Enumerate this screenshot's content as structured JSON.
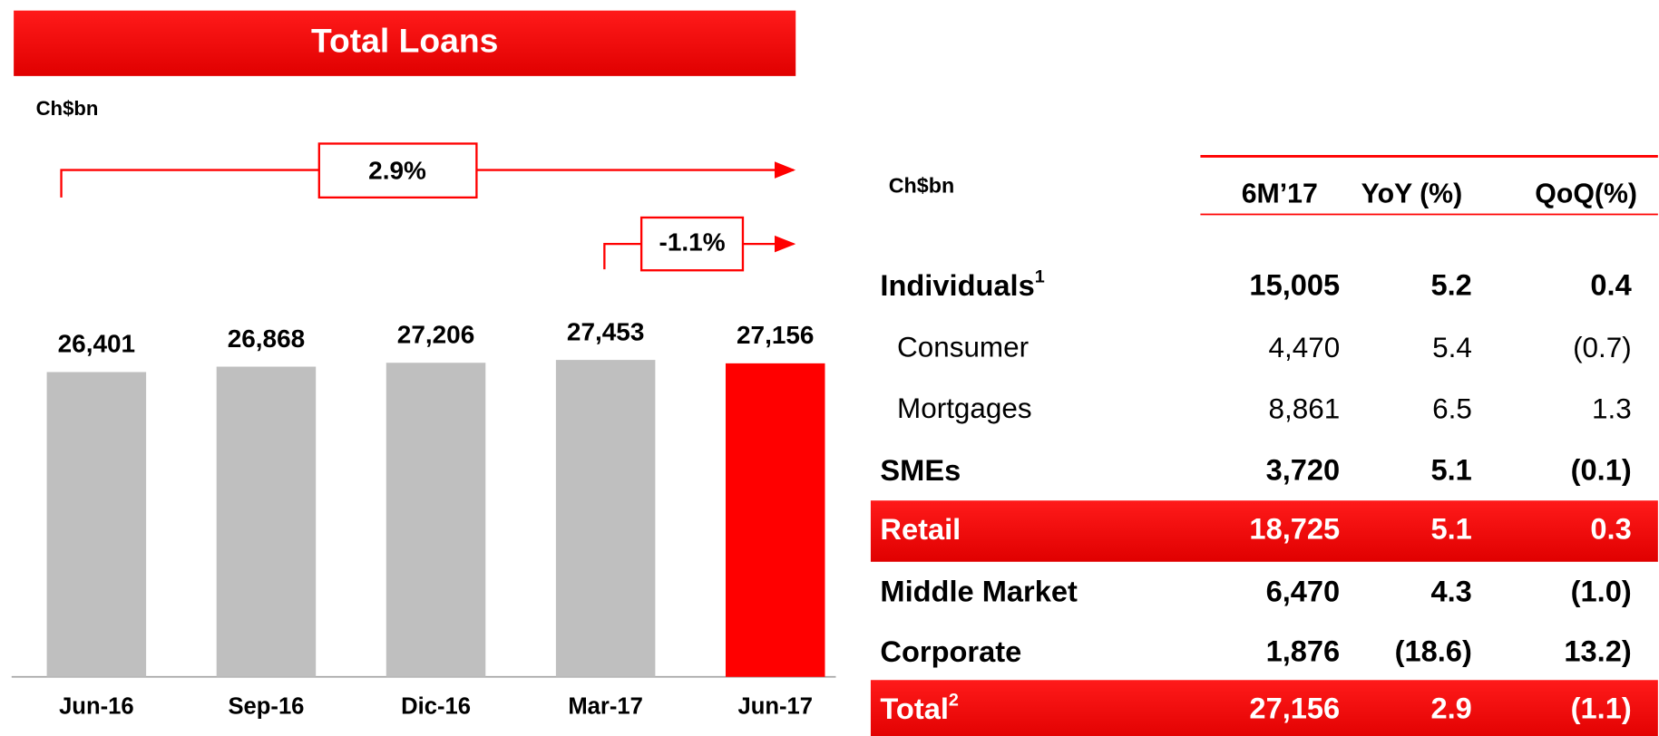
{
  "chart_data": {
    "type": "bar",
    "title": "Total Loans",
    "unit_label": "Ch$bn",
    "categories": [
      "Jun-16",
      "Sep-16",
      "Dic-16",
      "Mar-17",
      "Jun-17"
    ],
    "values": [
      26401,
      26868,
      27206,
      27453,
      27156
    ],
    "value_labels": [
      "26,401",
      "26,868",
      "27,206",
      "27,453",
      "27,156"
    ],
    "colors": [
      "#bfbfbf",
      "#bfbfbf",
      "#bfbfbf",
      "#bfbfbf",
      "#ff0000"
    ],
    "ylim": [
      0,
      30000
    ],
    "annotations": [
      "2.9%",
      "-1.1%"
    ]
  },
  "table": {
    "header": [
      "Ch$bn",
      "6M’17",
      "YoY (%)",
      "QoQ(%)"
    ],
    "rows": [
      {
        "label": "Individuals",
        "note": "1",
        "cells": [
          "15,005",
          "5.2",
          "0.4"
        ],
        "bold": true,
        "indent": false,
        "highlight": false
      },
      {
        "label": "Consumer",
        "cells": [
          "4,470",
          "5.4",
          "(0.7)"
        ],
        "bold": false,
        "indent": true,
        "highlight": false
      },
      {
        "label": "Mortgages",
        "cells": [
          "8,861",
          "6.5",
          "1.3"
        ],
        "bold": false,
        "indent": true,
        "highlight": false
      },
      {
        "label": "SMEs",
        "cells": [
          "3,720",
          "5.1",
          "(0.1)"
        ],
        "bold": true,
        "indent": false,
        "highlight": false
      },
      {
        "label": "Retail",
        "cells": [
          "18,725",
          "5.1",
          "0.3"
        ],
        "bold": true,
        "indent": false,
        "highlight": true
      },
      {
        "label": "Middle Market",
        "cells": [
          "6,470",
          "4.3",
          "(1.0)"
        ],
        "bold": true,
        "indent": false,
        "highlight": false
      },
      {
        "label": "Corporate",
        "cells": [
          "1,876",
          "(18.6)",
          "13.2)"
        ],
        "bold": true,
        "indent": false,
        "highlight": false
      },
      {
        "label": "Total",
        "note": "2",
        "cells": [
          "27,156",
          "2.9",
          "(1.1)"
        ],
        "bold": true,
        "indent": false,
        "highlight": true
      }
    ]
  }
}
